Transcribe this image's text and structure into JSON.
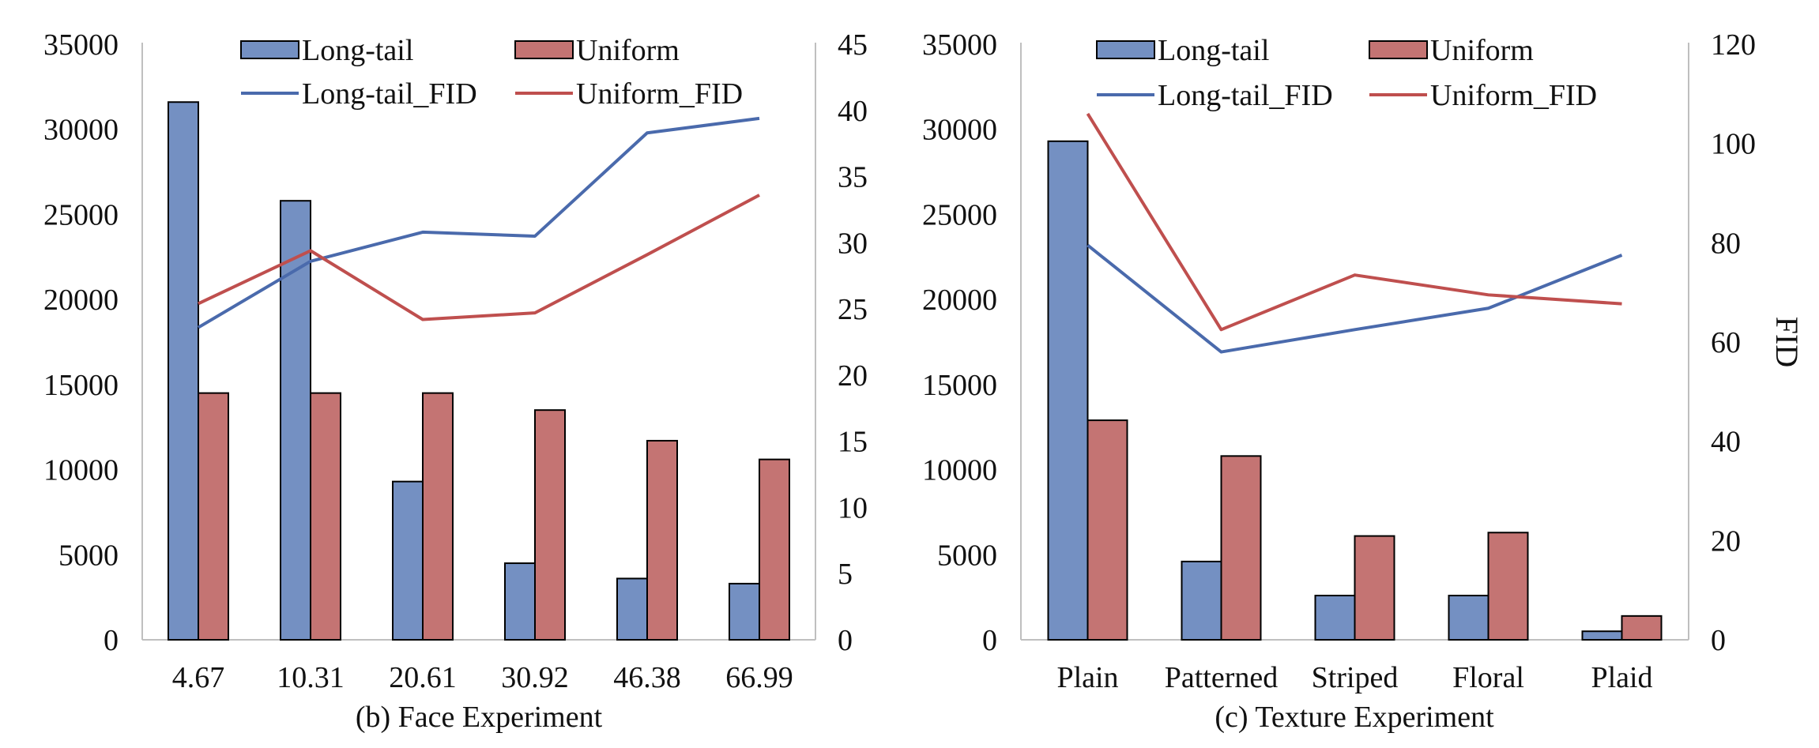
{
  "colors": {
    "long_tail": "#7490c2",
    "uniform": "#c47473",
    "long_tail_line": "#4a6aac",
    "uniform_line": "#bf4f4e",
    "axis": "#bfbfbf",
    "bar_edge": "#000000",
    "text": "#111111"
  },
  "chart_data": [
    {
      "type": "bar",
      "title": "(b) Face Experiment",
      "categories": [
        "4.67",
        "10.31",
        "20.61",
        "30.92",
        "46.38",
        "66.99"
      ],
      "series": [
        {
          "name": "Long-tail",
          "kind": "bar",
          "axis": "left",
          "values": [
            31600,
            25800,
            9300,
            4500,
            3600,
            3300
          ]
        },
        {
          "name": "Uniform",
          "kind": "bar",
          "axis": "left",
          "values": [
            14500,
            14500,
            14500,
            13500,
            11700,
            10600
          ]
        },
        {
          "name": "Long-tail_FID",
          "kind": "line",
          "axis": "right",
          "values": [
            23.6,
            28.6,
            30.8,
            30.5,
            38.3,
            39.4
          ]
        },
        {
          "name": "Uniform_FID",
          "kind": "line",
          "axis": "right",
          "values": [
            25.4,
            29.4,
            24.2,
            24.7,
            29.1,
            33.6
          ]
        }
      ],
      "y_left": {
        "range": [
          0,
          35000
        ],
        "ticks": [
          "0",
          "5000",
          "10000",
          "15000",
          "20000",
          "25000",
          "30000",
          "35000"
        ]
      },
      "y_right": {
        "range": [
          0,
          45
        ],
        "ticks": [
          "0",
          "5",
          "10",
          "15",
          "20",
          "25",
          "30",
          "35",
          "40",
          "45"
        ],
        "label": ""
      },
      "grid": false,
      "legend": "top, two columns"
    },
    {
      "type": "bar",
      "title": "(c) Texture Experiment",
      "categories": [
        "Plain",
        "Patterned",
        "Striped",
        "Floral",
        "Plaid"
      ],
      "series": [
        {
          "name": "Long-tail",
          "kind": "bar",
          "axis": "left",
          "values": [
            29300,
            4600,
            2600,
            2600,
            500
          ]
        },
        {
          "name": "Uniform",
          "kind": "bar",
          "axis": "left",
          "values": [
            12900,
            10800,
            6100,
            6300,
            1400
          ]
        },
        {
          "name": "Long-tail_FID",
          "kind": "line",
          "axis": "right",
          "values": [
            79.5,
            58.0,
            62.5,
            66.8,
            77.5
          ]
        },
        {
          "name": "Uniform_FID",
          "kind": "line",
          "axis": "right",
          "values": [
            106.0,
            62.5,
            73.5,
            69.5,
            67.7
          ]
        }
      ],
      "y_left": {
        "range": [
          0,
          35000
        ],
        "ticks": [
          "0",
          "5000",
          "10000",
          "15000",
          "20000",
          "25000",
          "30000",
          "35000"
        ]
      },
      "y_right": {
        "range": [
          0,
          120
        ],
        "ticks": [
          "0",
          "20",
          "40",
          "60",
          "80",
          "100",
          "120"
        ],
        "label": "FID"
      },
      "grid": false,
      "legend": "top, two columns"
    }
  ]
}
